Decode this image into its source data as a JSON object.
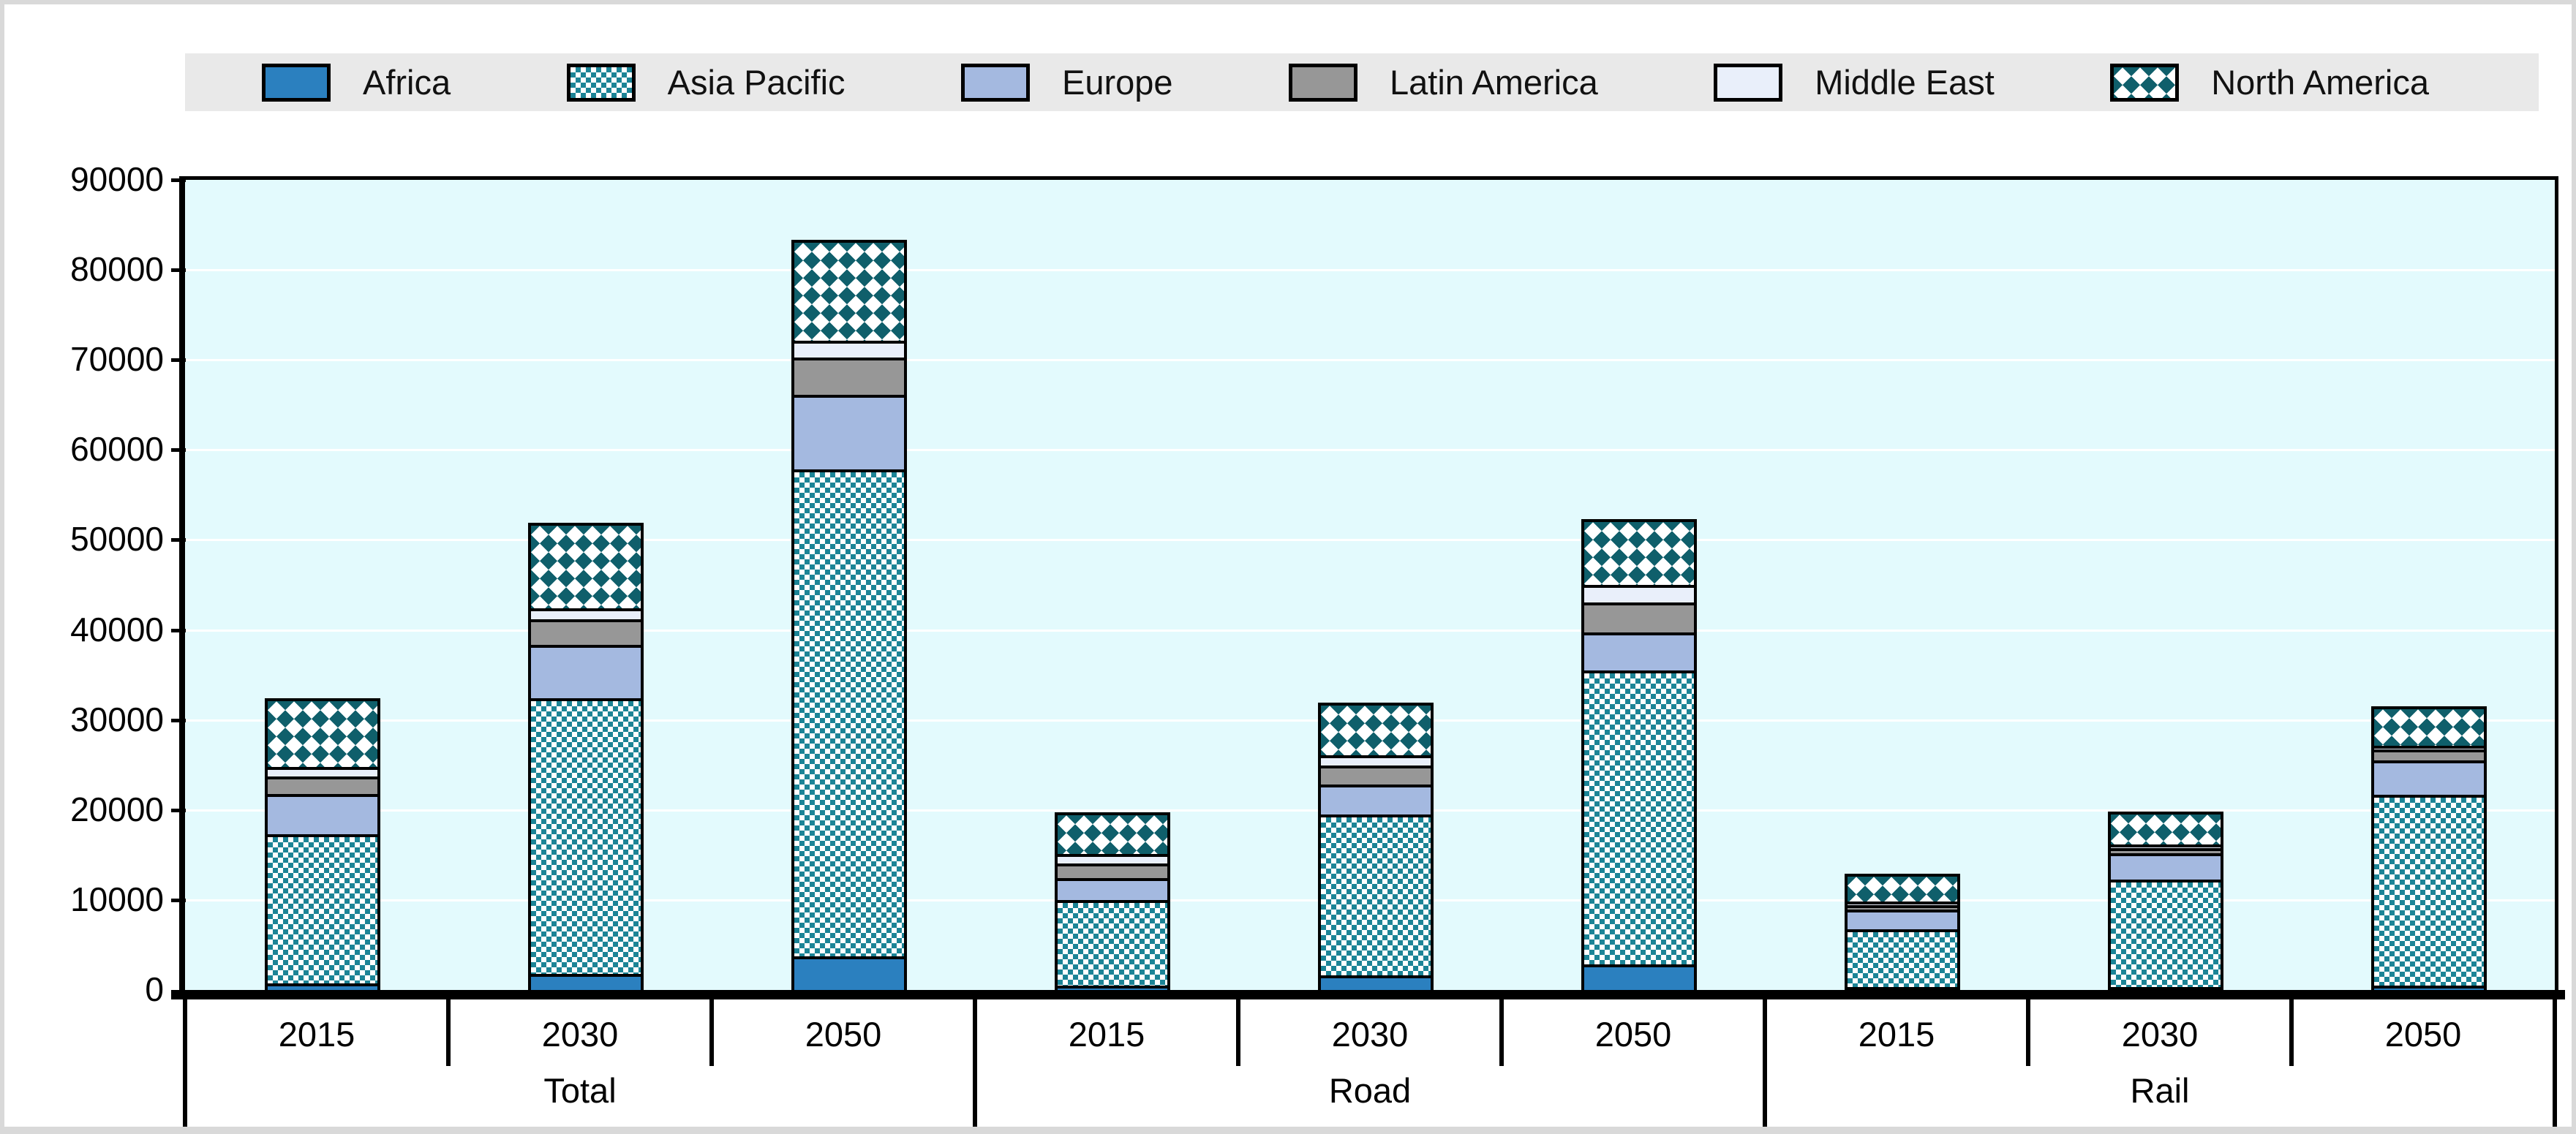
{
  "chart_data": {
    "type": "bar",
    "stacked": true,
    "title": "",
    "legend_position": "top",
    "grid": true,
    "groups": [
      "Total",
      "Road",
      "Rail"
    ],
    "years": [
      "2015",
      "2030",
      "2050"
    ],
    "bar_labels": [
      "Total 2015",
      "Total 2030",
      "Total 2050",
      "Road 2015",
      "Road 2030",
      "Road 2050",
      "Rail 2015",
      "Rail 2030",
      "Rail 2050"
    ],
    "y_axis": {
      "min": 0,
      "max": 90000,
      "step": 10000,
      "tick_labels": [
        "0",
        "10000",
        "20000",
        "30000",
        "40000",
        "50000",
        "60000",
        "70000",
        "80000",
        "90000"
      ]
    },
    "series": [
      {
        "name": "Africa",
        "color": "#2B80BF",
        "pattern": "solid",
        "values": [
          500,
          1600,
          3600,
          300,
          1500,
          2700,
          100,
          100,
          300
        ]
      },
      {
        "name": "Asia Pacific",
        "color": "#1C8496",
        "pattern": "checker",
        "values": [
          17100,
          31300,
          54800,
          10000,
          18500,
          33400,
          7000,
          12700,
          22000
        ]
      },
      {
        "name": "Europe",
        "color": "#A4B9E0",
        "pattern": "solid",
        "values": [
          4400,
          5800,
          8100,
          2300,
          3100,
          4000,
          2100,
          2800,
          3700
        ]
      },
      {
        "name": "Latin America",
        "color": "#979797",
        "pattern": "solid",
        "values": [
          1700,
          2600,
          3900,
          1400,
          1900,
          3100,
          200,
          300,
          900
        ]
      },
      {
        "name": "Middle East",
        "color": "#E9EFFA",
        "pattern": "solid",
        "values": [
          800,
          900,
          1600,
          800,
          850,
          1700,
          100,
          100,
          100
        ]
      },
      {
        "name": "North America",
        "color": "#0F5F6B",
        "pattern": "lattice",
        "values": [
          7700,
          9500,
          11100,
          4700,
          5850,
          7200,
          3200,
          3600,
          4300
        ]
      }
    ],
    "bar_totals": [
      32200,
      51700,
      83100,
      19500,
      31700,
      52100,
      12700,
      19600,
      31300
    ]
  },
  "colors": {
    "plot_background": "#E3FAFD",
    "gridline": "#FFFFFF",
    "legend_background": "#E9E9E9",
    "frame": "#D9D9D9",
    "axis": "#000000",
    "text": "#000000"
  }
}
